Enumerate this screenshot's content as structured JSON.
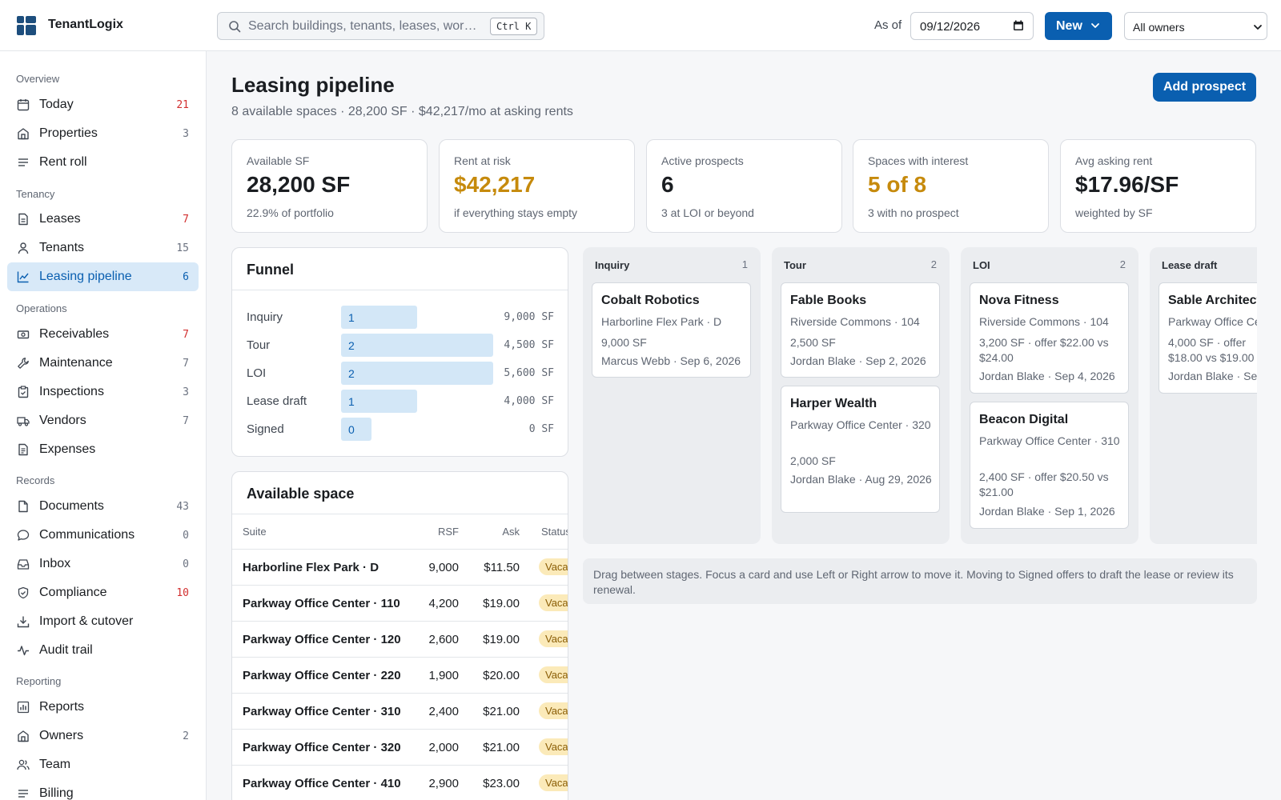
{
  "app": {
    "brand": "TenantLogix",
    "search_placeholder": "Search buildings, tenants, leases, wor…",
    "search_shortcut": "Ctrl K",
    "as_of_label": "As of",
    "as_of_date": "09/12/2026",
    "new_button": "New",
    "owner_filter": "All owners",
    "accent": "#0a5fb0"
  },
  "sidebar": {
    "sections": [
      {
        "title": "Overview",
        "items": [
          {
            "label": "Today",
            "count": "21",
            "icon": "calendar-icon"
          },
          {
            "label": "Properties",
            "count": "3",
            "icon": "building-icon"
          },
          {
            "label": "Rent roll",
            "count": "",
            "icon": "list-icon"
          }
        ]
      },
      {
        "title": "Tenancy",
        "items": [
          {
            "label": "Leases",
            "count": "7",
            "icon": "document-icon"
          },
          {
            "label": "Tenants",
            "count": "15",
            "icon": "user-icon"
          },
          {
            "label": "Leasing pipeline",
            "count": "6",
            "icon": "chart-line-icon"
          }
        ]
      },
      {
        "title": "Operations",
        "items": [
          {
            "label": "Receivables",
            "count": "7",
            "icon": "cash-icon"
          },
          {
            "label": "Maintenance",
            "count": "7",
            "icon": "wrench-icon"
          },
          {
            "label": "Inspections",
            "count": "3",
            "icon": "clipboard-icon"
          },
          {
            "label": "Vendors",
            "count": "7",
            "icon": "truck-icon"
          },
          {
            "label": "Expenses",
            "count": "",
            "icon": "receipt-icon"
          }
        ]
      },
      {
        "title": "Records",
        "items": [
          {
            "label": "Documents",
            "count": "43",
            "icon": "file-icon"
          },
          {
            "label": "Communications",
            "count": "0",
            "icon": "chat-icon"
          },
          {
            "label": "Inbox",
            "count": "0",
            "icon": "inbox-icon"
          },
          {
            "label": "Compliance",
            "count": "10",
            "icon": "shield-icon"
          },
          {
            "label": "Import & cutover",
            "count": "",
            "icon": "download-icon"
          },
          {
            "label": "Audit trail",
            "count": "",
            "icon": "activity-icon"
          }
        ]
      },
      {
        "title": "Reporting",
        "items": [
          {
            "label": "Reports",
            "count": "",
            "icon": "report-icon"
          },
          {
            "label": "Owners",
            "count": "2",
            "icon": "building-icon"
          },
          {
            "label": "Team",
            "count": "",
            "icon": "users-icon"
          },
          {
            "label": "Billing",
            "count": "",
            "icon": "list-icon"
          }
        ]
      }
    ]
  },
  "page": {
    "title": "Leasing pipeline",
    "subtitle": "8 available spaces · 28,200 SF · $42,217/mo at asking rents",
    "add_button": "Add prospect"
  },
  "kpis": [
    {
      "label": "Available SF",
      "value": "28,200 SF",
      "note": "22.9% of portfolio",
      "tone": "default"
    },
    {
      "label": "Rent at risk",
      "value": "$42,217",
      "note": "if everything stays empty",
      "tone": "amber"
    },
    {
      "label": "Active prospects",
      "value": "6",
      "note": "3 at LOI or beyond",
      "tone": "default"
    },
    {
      "label": "Spaces with interest",
      "value": "5 of 8",
      "note": "3 with no prospect",
      "tone": "amber"
    },
    {
      "label": "Avg asking rent",
      "value": "$17.96/SF",
      "note": "weighted by SF",
      "tone": "default"
    }
  ],
  "funnel": {
    "title": "Funnel",
    "stages": [
      {
        "label": "Inquiry",
        "count": "1",
        "sf": "9,000 SF",
        "share": 0.5
      },
      {
        "label": "Tour",
        "count": "2",
        "sf": "4,500 SF",
        "share": 1.0
      },
      {
        "label": "LOI",
        "count": "2",
        "sf": "5,600 SF",
        "share": 1.0
      },
      {
        "label": "Lease draft",
        "count": "1",
        "sf": "4,000 SF",
        "share": 0.5
      },
      {
        "label": "Signed",
        "count": "0",
        "sf": "0 SF",
        "share": 0.2
      }
    ]
  },
  "available_space": {
    "title": "Available space",
    "columns": [
      "Suite",
      "RSF",
      "Ask",
      "Status"
    ],
    "rows": [
      {
        "suite": "Harborline Flex Park · D",
        "rsf": "9,000",
        "ask": "$11.50",
        "status": "Vacant"
      },
      {
        "suite": "Parkway Office Center · 110",
        "rsf": "4,200",
        "ask": "$19.00",
        "status": "Vacant"
      },
      {
        "suite": "Parkway Office Center · 120",
        "rsf": "2,600",
        "ask": "$19.00",
        "status": "Vacant"
      },
      {
        "suite": "Parkway Office Center · 220",
        "rsf": "1,900",
        "ask": "$20.00",
        "status": "Vacant"
      },
      {
        "suite": "Parkway Office Center · 310",
        "rsf": "2,400",
        "ask": "$21.00",
        "status": "Vacant"
      },
      {
        "suite": "Parkway Office Center · 320",
        "rsf": "2,000",
        "ask": "$21.00",
        "status": "Vacant"
      },
      {
        "suite": "Parkway Office Center · 410",
        "rsf": "2,900",
        "ask": "$23.00",
        "status": "Vacant"
      }
    ]
  },
  "board": {
    "columns": [
      {
        "title": "Inquiry",
        "count": "1",
        "cards": [
          {
            "name": "Cobalt Robotics",
            "space": "Harborline Flex Park · D",
            "terms": "9,000 SF",
            "owner": "Marcus Webb · Sep 6, 2026"
          }
        ]
      },
      {
        "title": "Tour",
        "count": "2",
        "cards": [
          {
            "name": "Fable Books",
            "space": "Riverside Commons · 104",
            "terms": "2,500 SF",
            "owner": "Jordan Blake · Sep 2, 2026"
          },
          {
            "name": "Harper Wealth",
            "space": "Parkway Office Center · 320",
            "terms": "2,000 SF",
            "owner": "Jordan Blake · Aug 29, 2026"
          }
        ]
      },
      {
        "title": "LOI",
        "count": "2",
        "cards": [
          {
            "name": "Nova Fitness",
            "space": "Riverside Commons · 104",
            "terms": "3,200 SF · offer $22.00 vs $24.00",
            "owner": "Jordan Blake · Sep 4, 2026"
          },
          {
            "name": "Beacon Digital",
            "space": "Parkway Office Center · 310",
            "terms": "2,400 SF · offer $20.50 vs $21.00",
            "owner": "Jordan Blake · Sep 1, 2026"
          }
        ]
      },
      {
        "title": "Lease draft",
        "count": "",
        "cards": [
          {
            "name": "Sable Architects",
            "space": "Parkway Office Center",
            "terms": "4,000 SF · offer $18.00 vs $19.00",
            "owner": "Jordan Blake · Sep"
          }
        ]
      }
    ],
    "hint": "Drag between stages. Focus a card and use Left or Right arrow to move it. Moving to Signed offers to draft the lease or review its renewal."
  }
}
